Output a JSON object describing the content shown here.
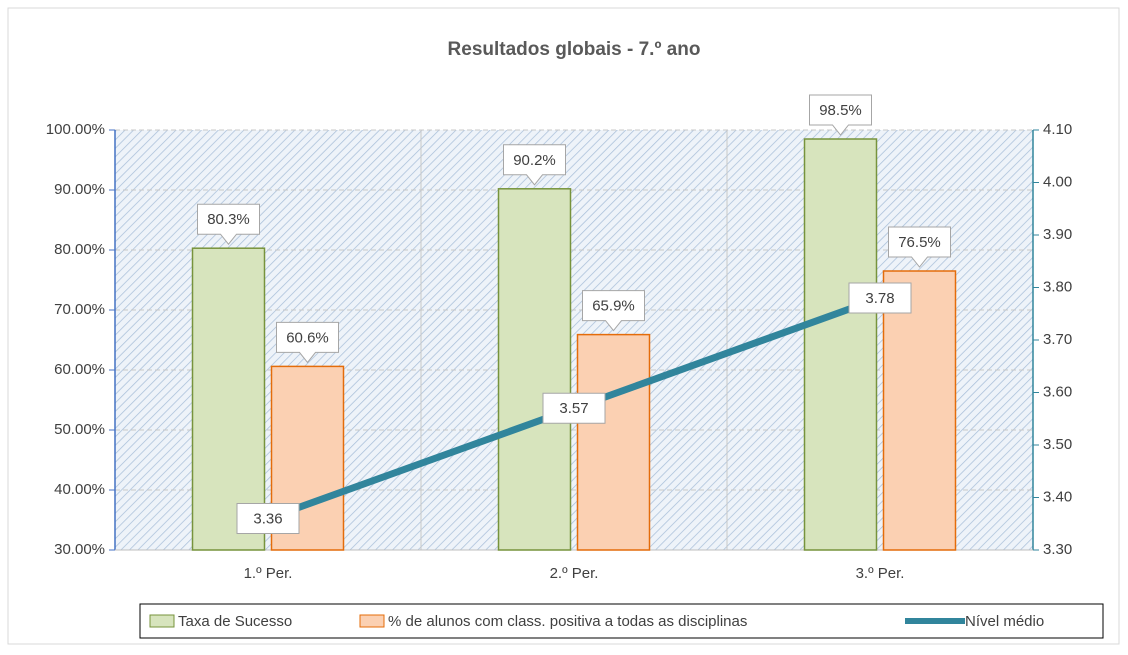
{
  "chart_data": {
    "type": "bar+line",
    "title": "Resultados globais - 7.º ano",
    "categories": [
      "1.º Per.",
      "2.º Per.",
      "3.º Per."
    ],
    "series": [
      {
        "name": "Taxa de Sucesso",
        "type": "bar",
        "color": "#d7e4bd",
        "edge_color": "#77933c",
        "values": [
          80.3,
          90.2,
          98.5
        ],
        "value_labels": [
          "80.3%",
          "90.2%",
          "98.5%"
        ]
      },
      {
        "name": "% de alunos com class. positiva a todas as disciplinas",
        "type": "bar",
        "color": "#fbd0b2",
        "edge_color": "#e46c0a",
        "values": [
          60.6,
          65.9,
          76.5
        ],
        "value_labels": [
          "60.6%",
          "65.9%",
          "76.5%"
        ]
      },
      {
        "name": "Nível médio",
        "type": "line",
        "axis": "y2",
        "color": "#31859c",
        "values": [
          3.36,
          3.57,
          3.78
        ]
      }
    ],
    "ylim": [
      30,
      100
    ],
    "yticks": [
      {
        "value": 30,
        "label": "30.00%"
      },
      {
        "value": 40,
        "label": "40.00%"
      },
      {
        "value": 50,
        "label": "50.00%"
      },
      {
        "value": 60,
        "label": "60.00%"
      },
      {
        "value": 70,
        "label": "70.00%"
      },
      {
        "value": 80,
        "label": "80.00%"
      },
      {
        "value": 90,
        "label": "90.00%"
      },
      {
        "value": 100,
        "label": "100.00%"
      }
    ],
    "y2lim": [
      3.3,
      4.1
    ],
    "y2ticks": [
      {
        "value": 3.3,
        "label": "3.30"
      },
      {
        "value": 3.4,
        "label": "3.40"
      },
      {
        "value": 3.5,
        "label": "3.50"
      },
      {
        "value": 3.6,
        "label": "3.60"
      },
      {
        "value": 3.7,
        "label": "3.70"
      },
      {
        "value": 3.8,
        "label": "3.80"
      },
      {
        "value": 3.9,
        "label": "3.90"
      },
      {
        "value": 4.0,
        "label": "4.00"
      },
      {
        "value": 4.1,
        "label": "4.10"
      }
    ],
    "grid": true,
    "legend": "bottom"
  }
}
